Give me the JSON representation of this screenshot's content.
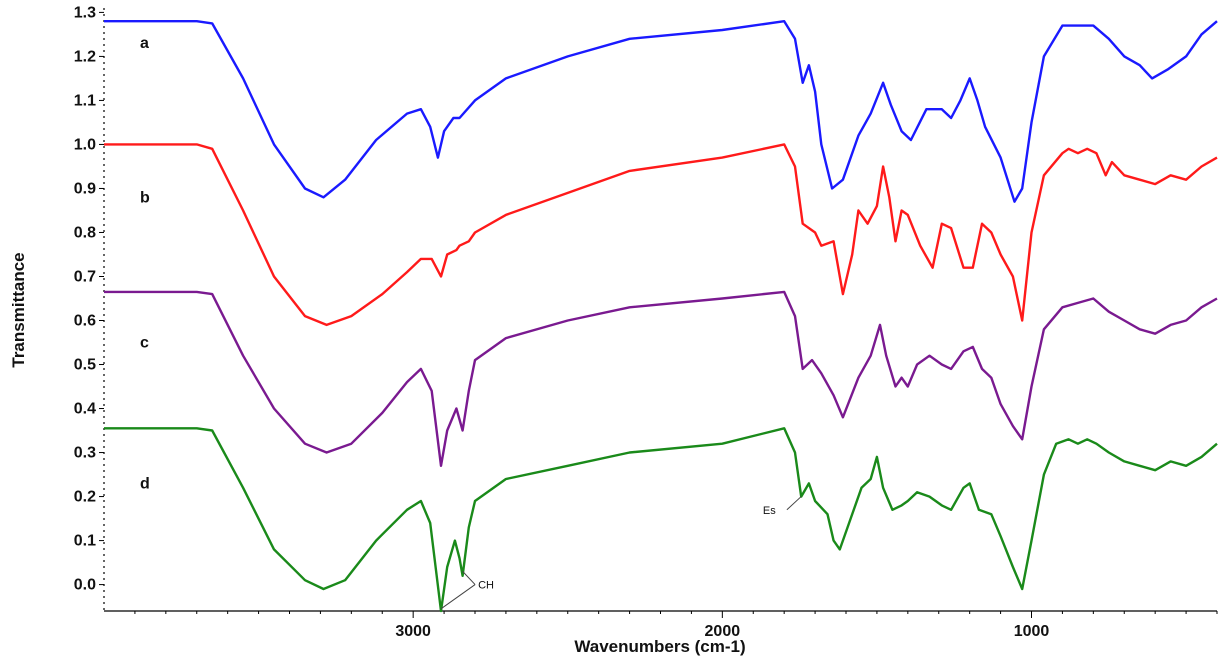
{
  "chart_data": {
    "type": "line",
    "xlabel": "Wavenumbers (cm-1)",
    "ylabel": "Transmittance",
    "xlim": [
      4000,
      400
    ],
    "ylim": [
      -0.06,
      1.31
    ],
    "x_reversed": true,
    "grid": false,
    "x_ticks": [
      3000,
      2000,
      1000
    ],
    "y_ticks": [
      0.0,
      0.1,
      0.2,
      0.3,
      0.4,
      0.5,
      0.6,
      0.7,
      0.8,
      0.9,
      1.0,
      1.1,
      1.2,
      1.3
    ],
    "series": [
      {
        "name": "a",
        "color": "#1a1aff",
        "points": [
          [
            4000,
            1.28
          ],
          [
            3700,
            1.28
          ],
          [
            3650,
            1.275
          ],
          [
            3550,
            1.15
          ],
          [
            3450,
            1.0
          ],
          [
            3350,
            0.9
          ],
          [
            3290,
            0.88
          ],
          [
            3220,
            0.92
          ],
          [
            3120,
            1.01
          ],
          [
            3020,
            1.07
          ],
          [
            2975,
            1.08
          ],
          [
            2945,
            1.04
          ],
          [
            2920,
            0.97
          ],
          [
            2900,
            1.03
          ],
          [
            2870,
            1.06
          ],
          [
            2850,
            1.06
          ],
          [
            2800,
            1.1
          ],
          [
            2700,
            1.15
          ],
          [
            2500,
            1.2
          ],
          [
            2300,
            1.24
          ],
          [
            2000,
            1.26
          ],
          [
            1800,
            1.28
          ],
          [
            1765,
            1.24
          ],
          [
            1740,
            1.14
          ],
          [
            1720,
            1.18
          ],
          [
            1700,
            1.12
          ],
          [
            1680,
            1.0
          ],
          [
            1645,
            0.9
          ],
          [
            1610,
            0.92
          ],
          [
            1560,
            1.02
          ],
          [
            1520,
            1.07
          ],
          [
            1480,
            1.14
          ],
          [
            1455,
            1.09
          ],
          [
            1420,
            1.03
          ],
          [
            1390,
            1.01
          ],
          [
            1340,
            1.08
          ],
          [
            1290,
            1.08
          ],
          [
            1260,
            1.06
          ],
          [
            1230,
            1.1
          ],
          [
            1200,
            1.15
          ],
          [
            1175,
            1.1
          ],
          [
            1150,
            1.04
          ],
          [
            1100,
            0.97
          ],
          [
            1055,
            0.87
          ],
          [
            1030,
            0.9
          ],
          [
            1000,
            1.05
          ],
          [
            960,
            1.2
          ],
          [
            900,
            1.27
          ],
          [
            850,
            1.27
          ],
          [
            800,
            1.27
          ],
          [
            750,
            1.24
          ],
          [
            700,
            1.2
          ],
          [
            650,
            1.18
          ],
          [
            610,
            1.15
          ],
          [
            560,
            1.17
          ],
          [
            500,
            1.2
          ],
          [
            450,
            1.25
          ],
          [
            400,
            1.28
          ]
        ]
      },
      {
        "name": "b",
        "color": "#ff1a1a",
        "points": [
          [
            4000,
            1.0
          ],
          [
            3700,
            1.0
          ],
          [
            3650,
            0.99
          ],
          [
            3550,
            0.85
          ],
          [
            3450,
            0.7
          ],
          [
            3350,
            0.61
          ],
          [
            3280,
            0.59
          ],
          [
            3200,
            0.61
          ],
          [
            3100,
            0.66
          ],
          [
            3020,
            0.71
          ],
          [
            2975,
            0.74
          ],
          [
            2940,
            0.74
          ],
          [
            2910,
            0.7
          ],
          [
            2890,
            0.75
          ],
          [
            2860,
            0.76
          ],
          [
            2850,
            0.77
          ],
          [
            2820,
            0.78
          ],
          [
            2800,
            0.8
          ],
          [
            2700,
            0.84
          ],
          [
            2500,
            0.89
          ],
          [
            2300,
            0.94
          ],
          [
            2000,
            0.97
          ],
          [
            1800,
            1.0
          ],
          [
            1765,
            0.95
          ],
          [
            1740,
            0.82
          ],
          [
            1700,
            0.8
          ],
          [
            1680,
            0.77
          ],
          [
            1640,
            0.78
          ],
          [
            1610,
            0.66
          ],
          [
            1580,
            0.75
          ],
          [
            1560,
            0.85
          ],
          [
            1530,
            0.82
          ],
          [
            1500,
            0.86
          ],
          [
            1480,
            0.95
          ],
          [
            1460,
            0.88
          ],
          [
            1440,
            0.78
          ],
          [
            1420,
            0.85
          ],
          [
            1400,
            0.84
          ],
          [
            1360,
            0.77
          ],
          [
            1320,
            0.72
          ],
          [
            1290,
            0.82
          ],
          [
            1260,
            0.81
          ],
          [
            1220,
            0.72
          ],
          [
            1190,
            0.72
          ],
          [
            1160,
            0.82
          ],
          [
            1130,
            0.8
          ],
          [
            1100,
            0.75
          ],
          [
            1060,
            0.7
          ],
          [
            1030,
            0.6
          ],
          [
            1000,
            0.8
          ],
          [
            960,
            0.93
          ],
          [
            900,
            0.98
          ],
          [
            880,
            0.99
          ],
          [
            850,
            0.98
          ],
          [
            820,
            0.99
          ],
          [
            790,
            0.98
          ],
          [
            760,
            0.93
          ],
          [
            740,
            0.96
          ],
          [
            700,
            0.93
          ],
          [
            650,
            0.92
          ],
          [
            600,
            0.91
          ],
          [
            550,
            0.93
          ],
          [
            500,
            0.92
          ],
          [
            450,
            0.95
          ],
          [
            400,
            0.97
          ]
        ]
      },
      {
        "name": "c",
        "color": "#7a1a90",
        "points": [
          [
            4000,
            0.665
          ],
          [
            3700,
            0.665
          ],
          [
            3650,
            0.66
          ],
          [
            3550,
            0.52
          ],
          [
            3450,
            0.4
          ],
          [
            3350,
            0.32
          ],
          [
            3280,
            0.3
          ],
          [
            3200,
            0.32
          ],
          [
            3100,
            0.39
          ],
          [
            3020,
            0.46
          ],
          [
            2975,
            0.49
          ],
          [
            2940,
            0.44
          ],
          [
            2910,
            0.27
          ],
          [
            2890,
            0.35
          ],
          [
            2860,
            0.4
          ],
          [
            2840,
            0.35
          ],
          [
            2820,
            0.44
          ],
          [
            2800,
            0.51
          ],
          [
            2700,
            0.56
          ],
          [
            2500,
            0.6
          ],
          [
            2300,
            0.63
          ],
          [
            2000,
            0.65
          ],
          [
            1800,
            0.665
          ],
          [
            1765,
            0.61
          ],
          [
            1740,
            0.49
          ],
          [
            1710,
            0.51
          ],
          [
            1680,
            0.48
          ],
          [
            1640,
            0.43
          ],
          [
            1610,
            0.38
          ],
          [
            1560,
            0.47
          ],
          [
            1520,
            0.52
          ],
          [
            1490,
            0.59
          ],
          [
            1470,
            0.52
          ],
          [
            1440,
            0.45
          ],
          [
            1420,
            0.47
          ],
          [
            1400,
            0.45
          ],
          [
            1370,
            0.5
          ],
          [
            1330,
            0.52
          ],
          [
            1290,
            0.5
          ],
          [
            1260,
            0.49
          ],
          [
            1220,
            0.53
          ],
          [
            1190,
            0.54
          ],
          [
            1160,
            0.49
          ],
          [
            1130,
            0.47
          ],
          [
            1100,
            0.41
          ],
          [
            1060,
            0.36
          ],
          [
            1030,
            0.33
          ],
          [
            1000,
            0.45
          ],
          [
            960,
            0.58
          ],
          [
            900,
            0.63
          ],
          [
            850,
            0.64
          ],
          [
            800,
            0.65
          ],
          [
            750,
            0.62
          ],
          [
            700,
            0.6
          ],
          [
            650,
            0.58
          ],
          [
            600,
            0.57
          ],
          [
            550,
            0.59
          ],
          [
            500,
            0.6
          ],
          [
            450,
            0.63
          ],
          [
            400,
            0.65
          ]
        ]
      },
      {
        "name": "d",
        "color": "#1a8a1a",
        "points": [
          [
            4000,
            0.355
          ],
          [
            3700,
            0.355
          ],
          [
            3650,
            0.35
          ],
          [
            3550,
            0.22
          ],
          [
            3450,
            0.08
          ],
          [
            3350,
            0.01
          ],
          [
            3290,
            -0.01
          ],
          [
            3220,
            0.01
          ],
          [
            3120,
            0.1
          ],
          [
            3020,
            0.17
          ],
          [
            2975,
            0.19
          ],
          [
            2945,
            0.14
          ],
          [
            2910,
            -0.06
          ],
          [
            2890,
            0.04
          ],
          [
            2865,
            0.1
          ],
          [
            2850,
            0.06
          ],
          [
            2840,
            0.02
          ],
          [
            2820,
            0.13
          ],
          [
            2800,
            0.19
          ],
          [
            2700,
            0.24
          ],
          [
            2500,
            0.27
          ],
          [
            2300,
            0.3
          ],
          [
            2000,
            0.32
          ],
          [
            1800,
            0.355
          ],
          [
            1765,
            0.3
          ],
          [
            1745,
            0.2
          ],
          [
            1720,
            0.23
          ],
          [
            1700,
            0.19
          ],
          [
            1660,
            0.16
          ],
          [
            1640,
            0.1
          ],
          [
            1620,
            0.08
          ],
          [
            1590,
            0.14
          ],
          [
            1550,
            0.22
          ],
          [
            1520,
            0.24
          ],
          [
            1500,
            0.29
          ],
          [
            1480,
            0.22
          ],
          [
            1450,
            0.17
          ],
          [
            1420,
            0.18
          ],
          [
            1400,
            0.19
          ],
          [
            1370,
            0.21
          ],
          [
            1330,
            0.2
          ],
          [
            1290,
            0.18
          ],
          [
            1260,
            0.17
          ],
          [
            1220,
            0.22
          ],
          [
            1200,
            0.23
          ],
          [
            1170,
            0.17
          ],
          [
            1130,
            0.16
          ],
          [
            1100,
            0.11
          ],
          [
            1060,
            0.04
          ],
          [
            1030,
            -0.01
          ],
          [
            1000,
            0.1
          ],
          [
            960,
            0.25
          ],
          [
            920,
            0.32
          ],
          [
            880,
            0.33
          ],
          [
            850,
            0.32
          ],
          [
            820,
            0.33
          ],
          [
            790,
            0.32
          ],
          [
            750,
            0.3
          ],
          [
            700,
            0.28
          ],
          [
            650,
            0.27
          ],
          [
            600,
            0.26
          ],
          [
            550,
            0.28
          ],
          [
            500,
            0.27
          ],
          [
            450,
            0.29
          ],
          [
            400,
            0.32
          ]
        ]
      }
    ],
    "series_labels": [
      {
        "text": "a",
        "y": 1.23
      },
      {
        "text": "b",
        "y": 0.88
      },
      {
        "text": "c",
        "y": 0.55
      },
      {
        "text": "d",
        "y": 0.23
      }
    ],
    "annotations": [
      {
        "text": "CH",
        "points": [
          [
            2910,
            -0.055
          ],
          [
            2840,
            0.03
          ]
        ],
        "label_at": [
          2790,
          0.0
        ]
      },
      {
        "text": "Es",
        "points": [
          [
            1745,
            0.2
          ]
        ],
        "label_at": [
          1830,
          0.17
        ]
      }
    ]
  }
}
